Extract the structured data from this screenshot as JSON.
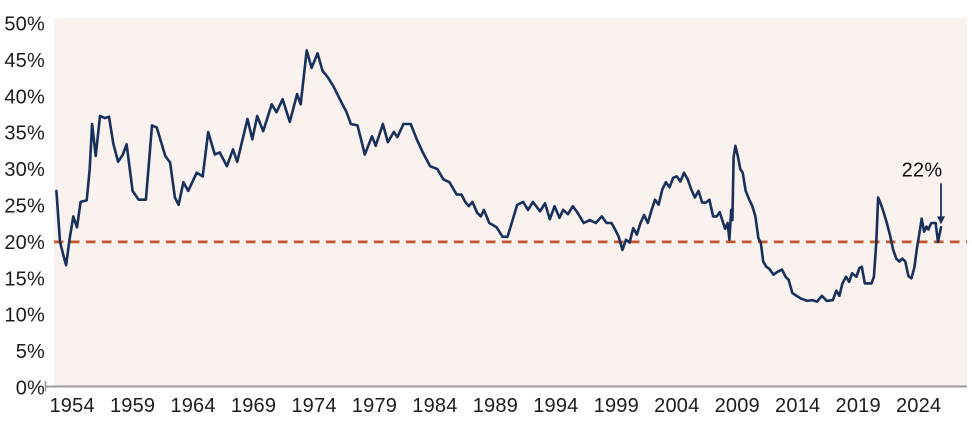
{
  "chart_data": {
    "type": "line",
    "title": "",
    "xlabel": "",
    "ylabel": "",
    "grid": false,
    "legend": "none",
    "axis": {
      "x_min": 1952.5,
      "x_max": 2028.0,
      "y_min": 0,
      "y_max": 50
    },
    "y_ticks": [
      {
        "value": 0,
        "label": "0%"
      },
      {
        "value": 5,
        "label": "5%"
      },
      {
        "value": 10,
        "label": "10%"
      },
      {
        "value": 15,
        "label": "15%"
      },
      {
        "value": 20,
        "label": "20%"
      },
      {
        "value": 25,
        "label": "25%"
      },
      {
        "value": 30,
        "label": "30%"
      },
      {
        "value": 35,
        "label": "35%"
      },
      {
        "value": 40,
        "label": "40%"
      },
      {
        "value": 45,
        "label": "45%"
      },
      {
        "value": 50,
        "label": "50%"
      }
    ],
    "x_ticks": [
      {
        "value": 1954,
        "label": "1954"
      },
      {
        "value": 1959,
        "label": "1959"
      },
      {
        "value": 1964,
        "label": "1964"
      },
      {
        "value": 1969,
        "label": "1969"
      },
      {
        "value": 1974,
        "label": "1974"
      },
      {
        "value": 1979,
        "label": "1979"
      },
      {
        "value": 1984,
        "label": "1984"
      },
      {
        "value": 1989,
        "label": "1989"
      },
      {
        "value": 1994,
        "label": "1994"
      },
      {
        "value": 1999,
        "label": "1999"
      },
      {
        "value": 2004,
        "label": "2004"
      },
      {
        "value": 2009,
        "label": "2009"
      },
      {
        "value": 2014,
        "label": "2014"
      },
      {
        "value": 2019,
        "label": "2019"
      },
      {
        "value": 2024,
        "label": "2024"
      }
    ],
    "reference_line": {
      "value": 20,
      "style": "dashed",
      "color": "#c2572b"
    },
    "annotation": {
      "label": "22%",
      "points_to_value": 22,
      "arrow": "down"
    },
    "colors": {
      "line": "#17305c",
      "reference_line": "#c2572b",
      "plot_background": "#faf2ee",
      "axis": "#9b9b9b",
      "tick_label": "#1c1c1c",
      "annotation": "#101010",
      "arrow": "#17305c"
    },
    "series": [
      {
        "name": "value",
        "data": [
          [
            1952.7,
            27.0
          ],
          [
            1953.0,
            20.0
          ],
          [
            1953.3,
            18.0
          ],
          [
            1953.5,
            16.8
          ],
          [
            1953.8,
            20.5
          ],
          [
            1954.1,
            23.5
          ],
          [
            1954.4,
            22.0
          ],
          [
            1954.7,
            25.5
          ],
          [
            1955.2,
            25.7
          ],
          [
            1955.45,
            30.0
          ],
          [
            1955.65,
            36.2
          ],
          [
            1955.95,
            31.8
          ],
          [
            1956.3,
            37.3
          ],
          [
            1956.7,
            37.0
          ],
          [
            1957.05,
            37.2
          ],
          [
            1957.4,
            33.5
          ],
          [
            1957.8,
            31.0
          ],
          [
            1958.2,
            32.0
          ],
          [
            1958.5,
            33.4
          ],
          [
            1959.0,
            27.0
          ],
          [
            1959.5,
            25.8
          ],
          [
            1960.1,
            25.8
          ],
          [
            1960.6,
            36.0
          ],
          [
            1961.0,
            35.7
          ],
          [
            1961.7,
            31.8
          ],
          [
            1962.1,
            30.9
          ],
          [
            1962.5,
            26.1
          ],
          [
            1962.8,
            25.1
          ],
          [
            1963.2,
            28.2
          ],
          [
            1963.6,
            27.0
          ],
          [
            1964.3,
            29.5
          ],
          [
            1964.8,
            29.0
          ],
          [
            1965.25,
            35.1
          ],
          [
            1965.8,
            32.0
          ],
          [
            1966.2,
            32.3
          ],
          [
            1966.8,
            30.4
          ],
          [
            1967.3,
            32.7
          ],
          [
            1967.65,
            31.0
          ],
          [
            1968.5,
            36.9
          ],
          [
            1968.9,
            34.1
          ],
          [
            1969.3,
            37.3
          ],
          [
            1969.8,
            35.2
          ],
          [
            1970.5,
            38.9
          ],
          [
            1970.9,
            37.8
          ],
          [
            1971.4,
            39.6
          ],
          [
            1972.0,
            36.5
          ],
          [
            1972.6,
            40.3
          ],
          [
            1972.9,
            38.9
          ],
          [
            1973.4,
            46.3
          ],
          [
            1973.8,
            43.9
          ],
          [
            1974.3,
            45.9
          ],
          [
            1974.7,
            43.5
          ],
          [
            1975.1,
            42.7
          ],
          [
            1975.6,
            41.4
          ],
          [
            1976.2,
            39.4
          ],
          [
            1976.7,
            37.8
          ],
          [
            1977.05,
            36.2
          ],
          [
            1977.6,
            36.0
          ],
          [
            1977.9,
            34.0
          ],
          [
            1978.2,
            32.0
          ],
          [
            1978.8,
            34.5
          ],
          [
            1979.1,
            33.2
          ],
          [
            1979.7,
            36.2
          ],
          [
            1980.1,
            33.7
          ],
          [
            1980.6,
            35.1
          ],
          [
            1980.9,
            34.4
          ],
          [
            1981.4,
            36.2
          ],
          [
            1982.0,
            36.2
          ],
          [
            1982.5,
            34.1
          ],
          [
            1983.0,
            32.3
          ],
          [
            1983.6,
            30.4
          ],
          [
            1984.2,
            30.0
          ],
          [
            1984.7,
            28.6
          ],
          [
            1985.2,
            28.2
          ],
          [
            1985.8,
            26.5
          ],
          [
            1986.2,
            26.5
          ],
          [
            1986.5,
            25.5
          ],
          [
            1986.8,
            24.9
          ],
          [
            1987.1,
            25.5
          ],
          [
            1987.5,
            24.0
          ],
          [
            1987.8,
            23.5
          ],
          [
            1988.05,
            24.4
          ],
          [
            1988.5,
            22.6
          ],
          [
            1989.1,
            22.0
          ],
          [
            1989.6,
            20.7
          ],
          [
            1990.0,
            20.7
          ],
          [
            1990.35,
            22.6
          ],
          [
            1990.8,
            25.1
          ],
          [
            1991.3,
            25.5
          ],
          [
            1991.7,
            24.4
          ],
          [
            1992.1,
            25.5
          ],
          [
            1992.7,
            24.2
          ],
          [
            1993.1,
            25.3
          ],
          [
            1993.5,
            23.1
          ],
          [
            1993.9,
            24.9
          ],
          [
            1994.3,
            23.3
          ],
          [
            1994.6,
            24.4
          ],
          [
            1995.0,
            23.8
          ],
          [
            1995.4,
            24.9
          ],
          [
            1995.8,
            24.0
          ],
          [
            1996.3,
            22.6
          ],
          [
            1996.8,
            23.0
          ],
          [
            1997.3,
            22.6
          ],
          [
            1997.8,
            23.5
          ],
          [
            1998.2,
            22.6
          ],
          [
            1998.6,
            22.6
          ],
          [
            1998.9,
            21.7
          ],
          [
            1999.2,
            20.7
          ],
          [
            1999.5,
            18.9
          ],
          [
            1999.8,
            20.3
          ],
          [
            2000.1,
            19.9
          ],
          [
            2000.4,
            21.9
          ],
          [
            2000.7,
            21.0
          ],
          [
            2001.0,
            22.6
          ],
          [
            2001.3,
            23.7
          ],
          [
            2001.6,
            22.6
          ],
          [
            2001.9,
            24.3
          ],
          [
            2002.2,
            25.8
          ],
          [
            2002.5,
            25.1
          ],
          [
            2002.8,
            27.2
          ],
          [
            2003.1,
            28.2
          ],
          [
            2003.4,
            27.5
          ],
          [
            2003.7,
            28.8
          ],
          [
            2004.0,
            29.0
          ],
          [
            2004.3,
            28.3
          ],
          [
            2004.6,
            29.5
          ],
          [
            2004.9,
            28.6
          ],
          [
            2005.2,
            27.2
          ],
          [
            2005.5,
            26.1
          ],
          [
            2005.8,
            27.0
          ],
          [
            2006.1,
            25.4
          ],
          [
            2006.4,
            25.4
          ],
          [
            2006.7,
            25.8
          ],
          [
            2007.0,
            23.5
          ],
          [
            2007.3,
            23.5
          ],
          [
            2007.55,
            24.1
          ],
          [
            2007.8,
            22.8
          ],
          [
            2008.0,
            21.8
          ],
          [
            2008.2,
            22.6
          ],
          [
            2008.35,
            20.3
          ],
          [
            2008.5,
            24.4
          ],
          [
            2008.6,
            23.0
          ],
          [
            2008.7,
            31.6
          ],
          [
            2008.85,
            33.2
          ],
          [
            2009.05,
            31.8
          ],
          [
            2009.25,
            30.0
          ],
          [
            2009.45,
            29.5
          ],
          [
            2009.7,
            27.0
          ],
          [
            2010.0,
            25.8
          ],
          [
            2010.25,
            24.9
          ],
          [
            2010.5,
            23.5
          ],
          [
            2010.75,
            20.5
          ],
          [
            2010.95,
            19.9
          ],
          [
            2011.15,
            17.3
          ],
          [
            2011.4,
            16.6
          ],
          [
            2011.65,
            16.3
          ],
          [
            2012.0,
            15.5
          ],
          [
            2012.35,
            15.9
          ],
          [
            2012.7,
            16.2
          ],
          [
            2013.0,
            15.2
          ],
          [
            2013.25,
            14.8
          ],
          [
            2013.55,
            13.0
          ],
          [
            2013.9,
            12.6
          ],
          [
            2014.3,
            12.2
          ],
          [
            2014.8,
            11.9
          ],
          [
            2015.2,
            12.0
          ],
          [
            2015.6,
            11.8
          ],
          [
            2016.0,
            12.6
          ],
          [
            2016.4,
            11.9
          ],
          [
            2016.9,
            12.0
          ],
          [
            2017.2,
            13.3
          ],
          [
            2017.45,
            12.6
          ],
          [
            2017.7,
            14.3
          ],
          [
            2018.0,
            15.2
          ],
          [
            2018.25,
            14.5
          ],
          [
            2018.5,
            15.7
          ],
          [
            2018.85,
            15.2
          ],
          [
            2019.1,
            16.4
          ],
          [
            2019.3,
            16.6
          ],
          [
            2019.55,
            14.3
          ],
          [
            2020.1,
            14.3
          ],
          [
            2020.3,
            15.2
          ],
          [
            2020.5,
            19.9
          ],
          [
            2020.65,
            26.1
          ],
          [
            2020.9,
            25.1
          ],
          [
            2021.1,
            24.1
          ],
          [
            2021.4,
            22.4
          ],
          [
            2021.65,
            20.8
          ],
          [
            2021.9,
            18.9
          ],
          [
            2022.15,
            17.7
          ],
          [
            2022.4,
            17.3
          ],
          [
            2022.65,
            17.7
          ],
          [
            2022.9,
            17.3
          ],
          [
            2023.15,
            15.3
          ],
          [
            2023.4,
            15.0
          ],
          [
            2023.65,
            16.5
          ],
          [
            2023.85,
            19.0
          ],
          [
            2024.05,
            21.0
          ],
          [
            2024.25,
            23.2
          ],
          [
            2024.45,
            21.4
          ],
          [
            2024.65,
            22.1
          ],
          [
            2024.8,
            21.7
          ],
          [
            2025.05,
            22.6
          ],
          [
            2025.4,
            22.6
          ],
          [
            2025.6,
            20.0
          ],
          [
            2025.85,
            22.0
          ]
        ]
      }
    ]
  }
}
